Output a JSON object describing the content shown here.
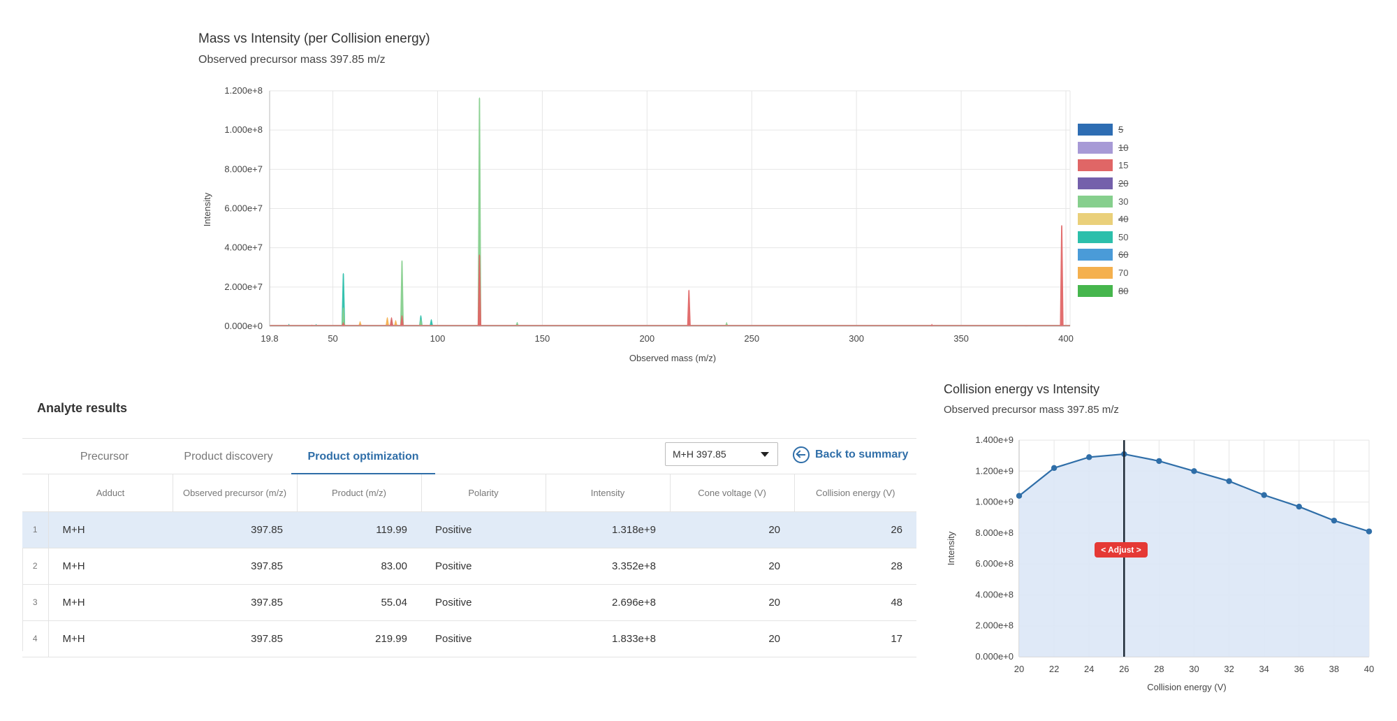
{
  "top_chart": {
    "title": "Mass vs Intensity (per Collision energy)",
    "subtitle": "Observed precursor mass 397.85 m/z",
    "y_ticks": [
      "0.000e+0",
      "2.000e+7",
      "4.000e+7",
      "6.000e+7",
      "8.000e+7",
      "1.000e+8",
      "1.200e+8"
    ],
    "x_ticks": [
      "19.8",
      "50",
      "100",
      "150",
      "200",
      "250",
      "300",
      "350",
      "400"
    ],
    "ylabel": "Intensity",
    "xlabel": "Observed mass (m/z)",
    "legend": [
      {
        "label": "5",
        "color": "#2e6db3",
        "off": true
      },
      {
        "label": "10",
        "color": "#a79ad6",
        "off": true
      },
      {
        "label": "15",
        "color": "#e06666",
        "off": false
      },
      {
        "label": "20",
        "color": "#7460ab",
        "off": true
      },
      {
        "label": "30",
        "color": "#86cf8d",
        "off": false
      },
      {
        "label": "40",
        "color": "#ead07a",
        "off": true
      },
      {
        "label": "50",
        "color": "#2cbfab",
        "off": false
      },
      {
        "label": "60",
        "color": "#4a9bd8",
        "off": true
      },
      {
        "label": "70",
        "color": "#f4b04e",
        "off": false
      },
      {
        "label": "80",
        "color": "#46b64d",
        "off": true
      }
    ]
  },
  "chart_data": [
    {
      "type": "area",
      "title": "Mass vs Intensity (per Collision energy)",
      "subtitle": "Observed precursor mass 397.85 m/z",
      "xlabel": "Observed mass (m/z)",
      "ylabel": "Intensity",
      "xlim": [
        19.8,
        402
      ],
      "ylim": [
        0,
        120000000
      ],
      "legend_position": "right",
      "grid": true,
      "series": [
        {
          "name": "15",
          "color": "#e06666",
          "peaks": [
            [
              40,
              1200000
            ],
            [
              55,
              2500000
            ],
            [
              78,
              5000000
            ],
            [
              83,
              6000000
            ],
            [
              120,
              37000000
            ],
            [
              220,
              19000000
            ],
            [
              336,
              1600000
            ],
            [
              381,
              800000
            ],
            [
              398,
              52000000
            ]
          ]
        },
        {
          "name": "30",
          "color": "#86cf8d",
          "peaks": [
            [
              55,
              10000000
            ],
            [
              83,
              34000000
            ],
            [
              92,
              4000000
            ],
            [
              120,
              117000000
            ],
            [
              138,
              2500000
            ],
            [
              238,
              2500000
            ]
          ]
        },
        {
          "name": "50",
          "color": "#2cbfab",
          "peaks": [
            [
              29,
              1600000
            ],
            [
              42,
              1500000
            ],
            [
              55,
              27500000
            ],
            [
              78,
              4500000
            ],
            [
              92,
              6000000
            ],
            [
              97,
              4000000
            ],
            [
              138,
              2500000
            ]
          ]
        },
        {
          "name": "70",
          "color": "#f4b04e",
          "peaks": [
            [
              63,
              3000000
            ],
            [
              76,
              5000000
            ],
            [
              80,
              3500000
            ]
          ]
        }
      ]
    },
    {
      "type": "line",
      "title": "Collision energy vs Intensity",
      "subtitle": "Observed precursor mass 397.85 m/z",
      "xlabel": "Collision energy (V)",
      "ylabel": "Intensity",
      "xlim": [
        20,
        40
      ],
      "ylim": [
        0,
        1400000000
      ],
      "grid": true,
      "x": [
        20,
        22,
        24,
        26,
        28,
        30,
        32,
        34,
        36,
        38,
        40
      ],
      "series": [
        {
          "values": [
            1040000000,
            1220000000,
            1290000000,
            1310000000,
            1265000000,
            1200000000,
            1135000000,
            1045000000,
            970000000,
            880000000,
            810000000
          ]
        }
      ],
      "marker_x": 26
    }
  ],
  "bottom_chart": {
    "title": "Collision energy vs Intensity",
    "subtitle": "Observed precursor mass 397.85 m/z",
    "y_ticks": [
      "0.000e+0",
      "2.000e+8",
      "4.000e+8",
      "6.000e+8",
      "8.000e+8",
      "1.000e+9",
      "1.200e+9",
      "1.400e+9"
    ],
    "x_ticks": [
      "20",
      "22",
      "24",
      "26",
      "28",
      "30",
      "32",
      "34",
      "36",
      "38",
      "40"
    ],
    "ylabel": "Intensity",
    "xlabel": "Collision energy (V)",
    "adjust_label": "< Adjust >"
  },
  "results": {
    "title": "Analyte results",
    "tabs": [
      "Precursor",
      "Product discovery",
      "Product optimization"
    ],
    "active_tab": 2,
    "select_value": "M+H 397.85",
    "back_label": "Back to summary",
    "headers": [
      "Adduct",
      "Observed precursor (m/z)",
      "Product (m/z)",
      "Polarity",
      "Intensity",
      "Cone voltage (V)",
      "Collision energy (V)"
    ],
    "rows": [
      {
        "idx": "1",
        "adduct": "M+H",
        "precursor": "397.85",
        "product": "119.99",
        "polarity": "Positive",
        "intensity": "1.318e+9",
        "cone": "20",
        "ce": "26"
      },
      {
        "idx": "2",
        "adduct": "M+H",
        "precursor": "397.85",
        "product": "83.00",
        "polarity": "Positive",
        "intensity": "3.352e+8",
        "cone": "20",
        "ce": "28"
      },
      {
        "idx": "3",
        "adduct": "M+H",
        "precursor": "397.85",
        "product": "55.04",
        "polarity": "Positive",
        "intensity": "2.696e+8",
        "cone": "20",
        "ce": "48"
      },
      {
        "idx": "4",
        "adduct": "M+H",
        "precursor": "397.85",
        "product": "219.99",
        "polarity": "Positive",
        "intensity": "1.833e+8",
        "cone": "20",
        "ce": "17"
      }
    ]
  }
}
